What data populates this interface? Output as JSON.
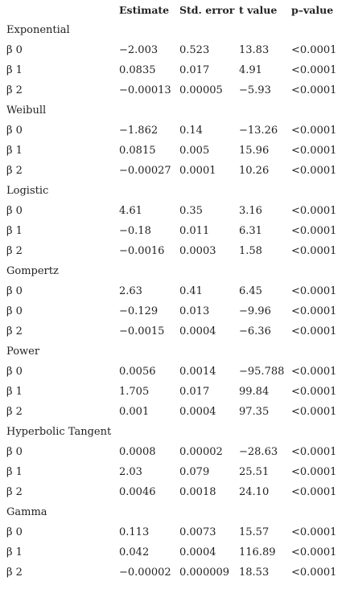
{
  "table": {
    "headers": [
      "",
      "Estimate",
      "Std. error",
      "t value",
      "p–value"
    ],
    "groups": [
      {
        "name": "Exponential",
        "rows": [
          [
            "β 0",
            "−2.003",
            "0.523",
            "13.83",
            "<0.0001"
          ],
          [
            "β 1",
            "0.0835",
            "0.017",
            "4.91",
            "<0.0001"
          ],
          [
            "β 2",
            "−0.00013",
            "0.00005",
            "−5.93",
            "<0.0001"
          ]
        ]
      },
      {
        "name": "Weibull",
        "rows": [
          [
            "β 0",
            "−1.862",
            "0.14",
            "−13.26",
            "<0.0001"
          ],
          [
            "β 1",
            "0.0815",
            "0.005",
            "15.96",
            "<0.0001"
          ],
          [
            "β 2",
            "−0.00027",
            "0.0001",
            "10.26",
            "<0.0001"
          ]
        ]
      },
      {
        "name": "Logistic",
        "rows": [
          [
            "β 0",
            "4.61",
            "0.35",
            "3.16",
            "<0.0001"
          ],
          [
            "β 1",
            "−0.18",
            "0.011",
            "6.31",
            "<0.0001"
          ],
          [
            "β 2",
            "−0.0016",
            "0.0003",
            "1.58",
            "<0.0001"
          ]
        ]
      },
      {
        "name": "Gompertz",
        "rows": [
          [
            "β 0",
            "2.63",
            "0.41",
            "6.45",
            "<0.0001"
          ],
          [
            "β 0",
            "−0.129",
            "0.013",
            "−9.96",
            "<0.0001"
          ],
          [
            "β 2",
            "−0.0015",
            "0.0004",
            "−6.36",
            "<0.0001"
          ]
        ]
      },
      {
        "name": "Power",
        "rows": [
          [
            "β 0",
            "0.0056",
            "0.0014",
            "−95.788",
            "<0.0001"
          ],
          [
            "β 1",
            "1.705",
            "0.017",
            "99.84",
            "<0.0001"
          ],
          [
            "β 2",
            "0.001",
            "0.0004",
            "97.35",
            "<0.0001"
          ]
        ]
      },
      {
        "name": "Hyperbolic Tangent",
        "rows": [
          [
            "β 0",
            "0.0008",
            "0.00002",
            "−28.63",
            "<0.0001"
          ],
          [
            "β 1",
            "2.03",
            "0.079",
            "25.51",
            "<0.0001"
          ],
          [
            "β 2",
            "0.0046",
            "0.0018",
            "24.10",
            "<0.0001"
          ]
        ]
      },
      {
        "name": "Gamma",
        "rows": [
          [
            "β 0",
            "0.113",
            "0.0073",
            "15.57",
            "<0.0001"
          ],
          [
            "β 1",
            "0.042",
            "0.0004",
            "116.89",
            "<0.0001"
          ],
          [
            "β 2",
            "−0.00002",
            "0.000009",
            "18.53",
            "<0.0001"
          ]
        ]
      }
    ]
  }
}
